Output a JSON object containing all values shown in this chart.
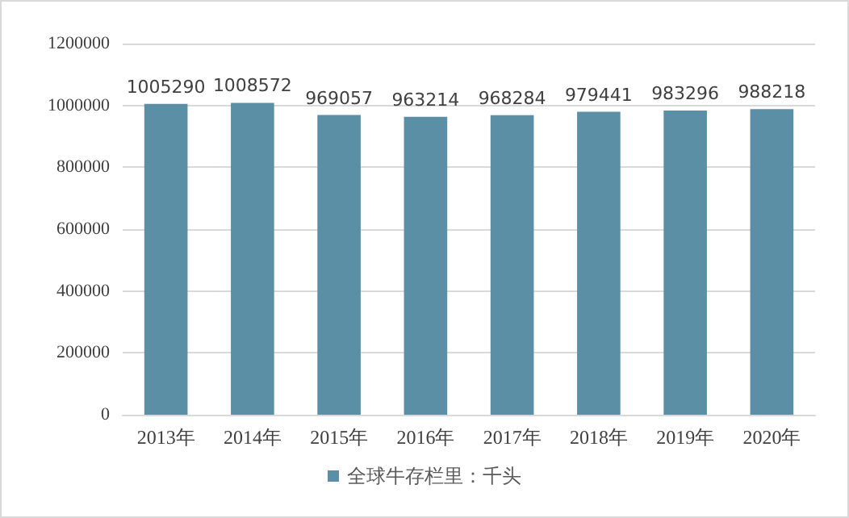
{
  "chart_data": {
    "type": "bar",
    "categories": [
      "2013年",
      "2014年",
      "2015年",
      "2016年",
      "2017年",
      "2018年",
      "2019年",
      "2020年"
    ],
    "series": [
      {
        "name": "全球牛存栏里：千头",
        "color": "#5b8fa6",
        "values": [
          1005290,
          1008572,
          969057,
          963214,
          968284,
          979441,
          983296,
          988218
        ]
      }
    ],
    "ylim": [
      0,
      1200000
    ],
    "yticks": [
      0,
      200000,
      400000,
      600000,
      800000,
      1000000,
      1200000
    ],
    "grid": "y",
    "legend": "bottom",
    "data_labels": true
  }
}
